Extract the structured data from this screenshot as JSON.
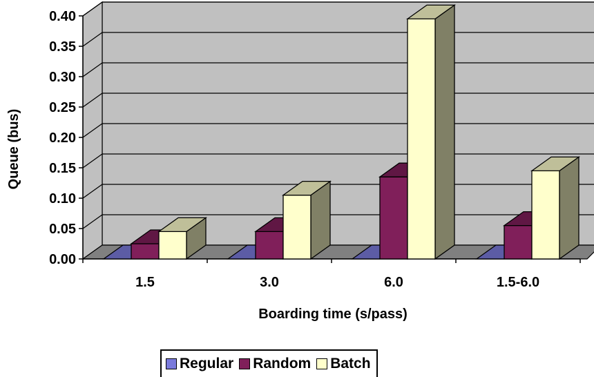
{
  "chart_data": {
    "type": "bar",
    "categories": [
      "1.5",
      "3.0",
      "6.0",
      "1.5-6.0"
    ],
    "series": [
      {
        "name": "Regular",
        "values": [
          0.0,
          0.0,
          0.0,
          0.0
        ],
        "color": "#7A7ADC"
      },
      {
        "name": "Random",
        "values": [
          0.025,
          0.045,
          0.135,
          0.055
        ],
        "color": "#801F5A"
      },
      {
        "name": "Batch",
        "values": [
          0.045,
          0.105,
          0.395,
          0.145
        ],
        "color": "#FFFFCC"
      }
    ],
    "yticks": [
      "0.00",
      "0.05",
      "0.10",
      "0.15",
      "0.20",
      "0.25",
      "0.30",
      "0.35",
      "0.40"
    ],
    "ylim": [
      0,
      0.4
    ],
    "xlabel": "Boarding time (s/pass)",
    "ylabel": "Queue (bus)",
    "title": "",
    "grid": true,
    "style": "3d",
    "legend_position": "bottom",
    "colors": {
      "wall": "#C0C0C0",
      "floor": "#808080"
    }
  }
}
